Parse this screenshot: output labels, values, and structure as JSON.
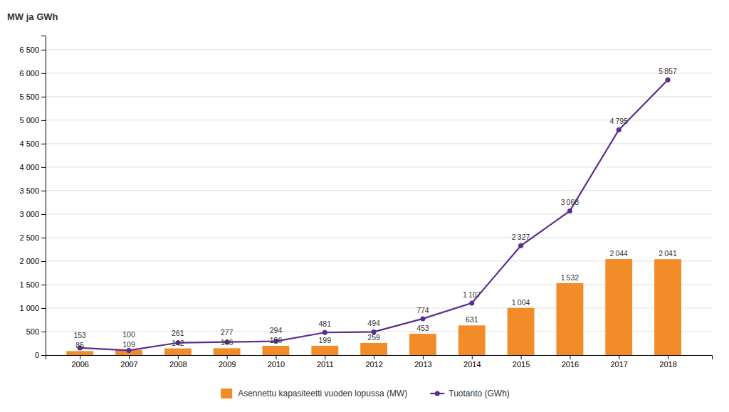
{
  "chart_data": {
    "type": "bar",
    "ylabel": "MW ja GWh",
    "x": [
      2006,
      2007,
      2008,
      2009,
      2010,
      2011,
      2012,
      2013,
      2014,
      2015,
      2016,
      2017,
      2018
    ],
    "xlim": [
      2005.3,
      2018.9
    ],
    "xticks": [
      2006,
      2007,
      2008,
      2009,
      2010,
      2011,
      2012,
      2013,
      2014,
      2015,
      2016,
      2017,
      2018
    ],
    "ylim": [
      0,
      6800
    ],
    "yticks": [
      0,
      500,
      {
        "value": 1000,
        "label": "1 000"
      },
      {
        "value": 1500,
        "label": "1 500"
      },
      {
        "value": 2000,
        "label": "2 000"
      },
      {
        "value": 2500,
        "label": "2 500"
      },
      {
        "value": 3000,
        "label": "3 000"
      },
      {
        "value": 3500,
        "label": "3 500"
      },
      {
        "value": 4000,
        "label": "4 000"
      },
      {
        "value": 4500,
        "label": "4 500"
      },
      {
        "value": 5000,
        "label": "5 000"
      },
      {
        "value": 5500,
        "label": "5 500"
      },
      {
        "value": 6000,
        "label": "6 000"
      },
      {
        "value": 6500,
        "label": "6 500"
      }
    ],
    "grid": "y",
    "legend": "bottom",
    "data_labels": true,
    "series": [
      {
        "name": "Asennettu kapasiteetti vuoden lopussa (MW)",
        "type": "bar",
        "color": "#F28C28",
        "values": [
          85,
          109,
          142,
          146,
          196,
          199,
          259,
          453,
          631,
          1004,
          1532,
          2044,
          2041
        ],
        "value_labels": [
          "85",
          "109",
          "142",
          "146",
          "196",
          "199",
          "259",
          "453",
          "631",
          "1 004",
          "1 532",
          "2 044",
          "2 041"
        ]
      },
      {
        "name": "Tuotanto (GWh)",
        "type": "line",
        "color": "#5B2D8E",
        "marker": "circle",
        "values": [
          153,
          100,
          261,
          277,
          294,
          481,
          494,
          774,
          1107,
          2327,
          3068,
          4795,
          5857
        ],
        "value_labels": [
          "153",
          "100",
          "261",
          "277",
          "294",
          "481",
          "494",
          "774",
          "1 107",
          "2 327",
          "3 068",
          "4 795",
          "5 857"
        ]
      }
    ]
  }
}
